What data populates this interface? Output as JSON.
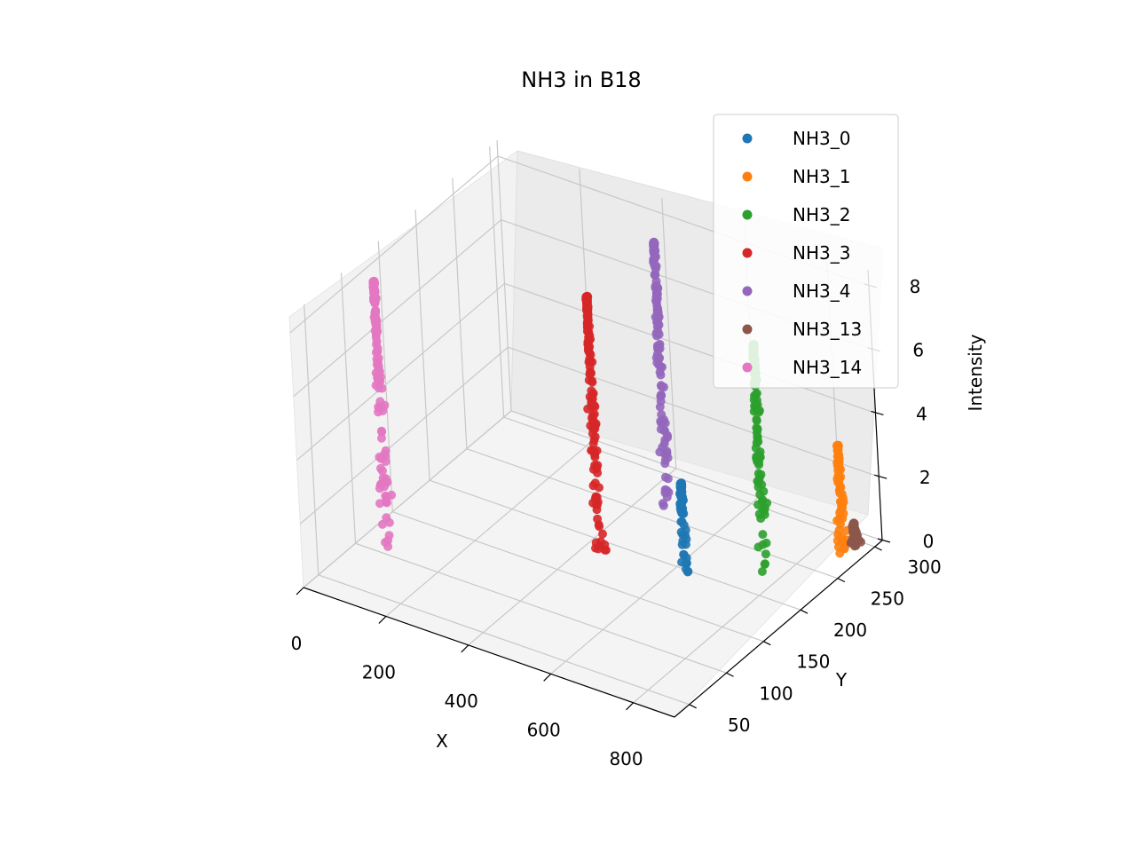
{
  "chart_data": {
    "type": "scatter",
    "projection": "3d",
    "title": "NH3 in B18",
    "xlabel": "X",
    "ylabel": "Y",
    "zlabel": "Intensity",
    "xlim": [
      0,
      900
    ],
    "ylim": [
      30,
      310
    ],
    "zlim": [
      0,
      8.5
    ],
    "x_ticks": [
      "0",
      "200",
      "400",
      "600",
      "800"
    ],
    "y_ticks": [
      "50",
      "100",
      "150",
      "200",
      "250",
      "300"
    ],
    "z_ticks": [
      "0",
      "2",
      "4",
      "6",
      "8"
    ],
    "grid": true,
    "legend_position": "top-right",
    "series": [
      {
        "name": "NH3_0",
        "color": "#1f77b4",
        "x": 640,
        "y": 190,
        "base_intensity": 0.0,
        "peak_intensity": 3.0
      },
      {
        "name": "NH3_1",
        "color": "#ff7f0e",
        "x": 860,
        "y": 280,
        "base_intensity": 0.0,
        "peak_intensity": 3.4
      },
      {
        "name": "NH3_2",
        "color": "#2ca02c",
        "x": 760,
        "y": 230,
        "base_intensity": 0.0,
        "peak_intensity": 7.1
      },
      {
        "name": "NH3_3",
        "color": "#d62728",
        "x": 450,
        "y": 180,
        "base_intensity": 0.0,
        "peak_intensity": 8.2
      },
      {
        "name": "NH3_4",
        "color": "#9467bd",
        "x": 470,
        "y": 260,
        "base_intensity": 0.0,
        "peak_intensity": 8.4
      },
      {
        "name": "NH3_13",
        "color": "#8c564b",
        "x": 870,
        "y": 290,
        "base_intensity": 0.0,
        "peak_intensity": 0.8
      },
      {
        "name": "NH3_14",
        "color": "#e377c2",
        "x": 60,
        "y": 110,
        "base_intensity": 0.0,
        "peak_intensity": 8.3
      }
    ]
  }
}
